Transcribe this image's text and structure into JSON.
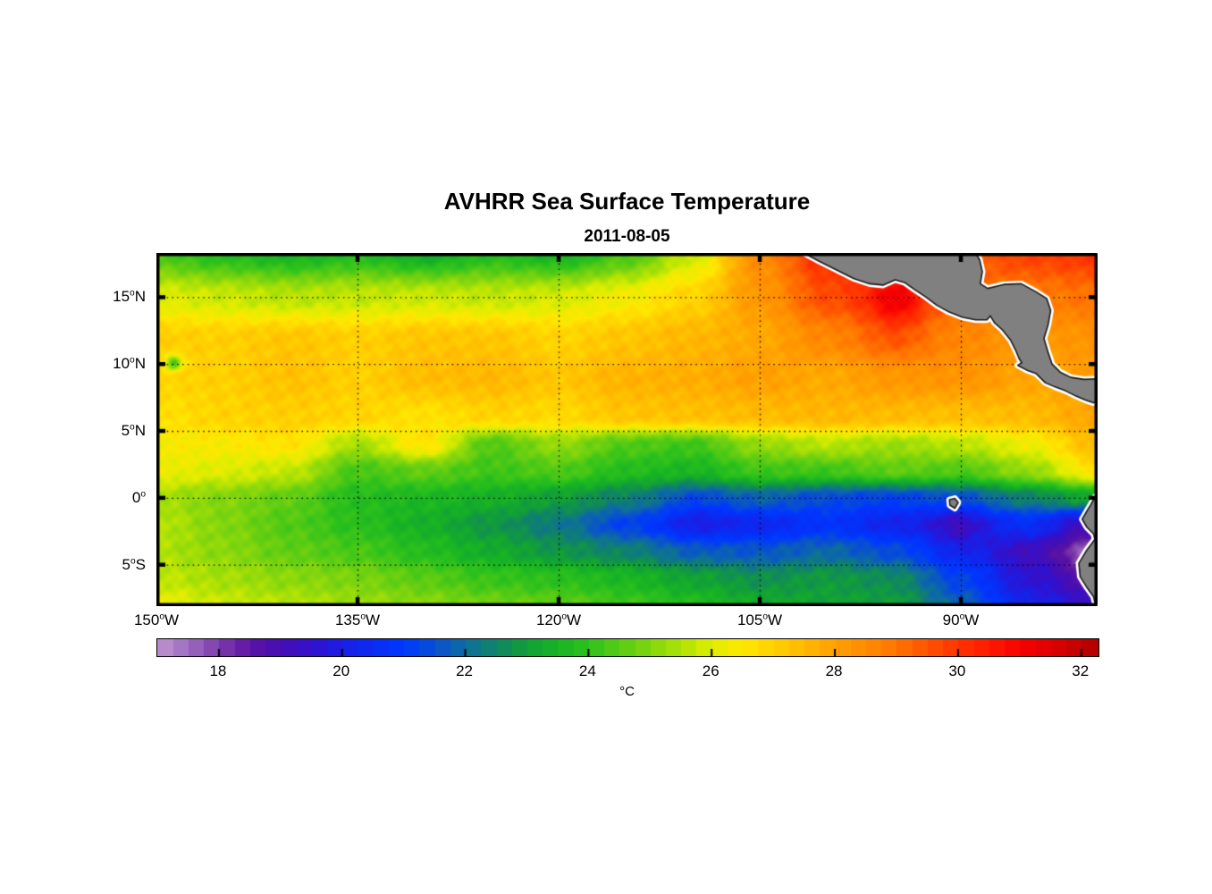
{
  "figure": {
    "title": "AVHRR Sea Surface Temperature",
    "subtitle": "2011-08-05",
    "background": "#FFFFFF"
  },
  "axes": {
    "x_ticks": [
      {
        "base": "150",
        "sup": "o",
        "suffix": "W",
        "lon": 150
      },
      {
        "base": "135",
        "sup": "o",
        "suffix": "W",
        "lon": 135
      },
      {
        "base": "120",
        "sup": "o",
        "suffix": "W",
        "lon": 120
      },
      {
        "base": "105",
        "sup": "o",
        "suffix": "W",
        "lon": 105
      },
      {
        "base": "90",
        "sup": "o",
        "suffix": "W",
        "lon": 90
      }
    ],
    "y_ticks": [
      {
        "base": "15",
        "sup": "o",
        "suffix": "N",
        "lat": 15
      },
      {
        "base": "10",
        "sup": "o",
        "suffix": "N",
        "lat": 10
      },
      {
        "base": "5",
        "sup": "o",
        "suffix": "N",
        "lat": 5
      },
      {
        "base": "0",
        "sup": "o",
        "suffix": "",
        "lat": 0
      },
      {
        "base": "5",
        "sup": "o",
        "suffix": "S",
        "lat": -5
      }
    ],
    "grid_lons": [
      135,
      120,
      105,
      90
    ],
    "grid_lats": [
      15,
      10,
      5,
      0,
      -5
    ]
  },
  "colorbar": {
    "min": 17,
    "max": 32.28,
    "quantize_step": 0.25,
    "ticks": [
      18,
      20,
      22,
      24,
      26,
      28,
      30,
      32
    ],
    "unit": "°C"
  },
  "chart_data": {
    "type": "heatmap",
    "title": "AVHRR Sea Surface Temperature",
    "date": "2011-08-05",
    "units": "°C",
    "lon_range_W": [
      150,
      79.8
    ],
    "lat_range_N": [
      18.3,
      -8.1
    ],
    "lons_W": [
      150,
      145,
      140,
      135,
      130,
      125,
      120,
      115,
      110,
      105,
      100,
      95,
      90,
      85,
      80
    ],
    "lats_N": [
      18.3,
      15,
      12,
      9,
      6,
      4,
      2,
      0,
      -2,
      -4,
      -6,
      -8.1
    ],
    "sst_C": [
      [
        24.3,
        23.8,
        23.5,
        23.8,
        23.3,
        23.8,
        23.5,
        24.3,
        25.8,
        28.5,
        30.2,
        30.0,
        29.2,
        29.8,
        30.0
      ],
      [
        26.0,
        25.8,
        25.6,
        25.7,
        25.8,
        25.7,
        25.9,
        26.3,
        26.9,
        28.2,
        29.6,
        30.3,
        29.2,
        28.8,
        29.0
      ],
      [
        27.0,
        27.0,
        27.2,
        27.0,
        27.2,
        27.2,
        26.9,
        27.2,
        27.5,
        27.8,
        28.6,
        29.4,
        28.6,
        28.2,
        28.3
      ],
      [
        26.9,
        27.0,
        27.3,
        27.0,
        27.4,
        27.5,
        27.2,
        27.6,
        27.7,
        28.0,
        27.8,
        28.2,
        28.3,
        27.9,
        28.1
      ],
      [
        26.6,
        26.9,
        27.0,
        26.9,
        26.6,
        26.9,
        26.8,
        27.2,
        27.3,
        27.4,
        27.5,
        27.4,
        27.3,
        27.4,
        27.9
      ],
      [
        26.4,
        26.4,
        26.6,
        25.4,
        26.6,
        24.4,
        25.2,
        24.4,
        24.2,
        25.2,
        25.6,
        25.3,
        25.6,
        26.2,
        27.4
      ],
      [
        26.2,
        26.0,
        25.7,
        24.3,
        24.6,
        24.2,
        24.4,
        23.8,
        23.6,
        24.2,
        24.2,
        24.6,
        24.4,
        25.2,
        26.6
      ],
      [
        25.4,
        25.0,
        24.6,
        23.8,
        23.6,
        23.4,
        23.0,
        22.4,
        21.6,
        21.8,
        21.4,
        21.2,
        21.6,
        22.4,
        23.2
      ],
      [
        25.6,
        25.0,
        24.4,
        23.9,
        23.4,
        22.8,
        22.2,
        21.2,
        20.4,
        20.3,
        20.8,
        20.2,
        19.8,
        20.6,
        19.0
      ],
      [
        25.5,
        25.1,
        24.6,
        24.3,
        23.8,
        23.3,
        22.8,
        22.4,
        21.8,
        21.6,
        21.9,
        21.4,
        20.4,
        19.2,
        18.0
      ],
      [
        25.7,
        25.4,
        25.1,
        24.9,
        24.5,
        24.1,
        23.9,
        23.6,
        23.1,
        22.7,
        22.9,
        22.6,
        21.2,
        19.6,
        19.0
      ],
      [
        26.2,
        25.8,
        25.6,
        25.3,
        25.1,
        24.8,
        24.6,
        24.2,
        23.8,
        23.3,
        23.1,
        23.0,
        21.8,
        20.2,
        19.4
      ]
    ],
    "colormap_stops": [
      [
        17.0,
        "#BD96D0"
      ],
      [
        17.5,
        "#9D6CBF"
      ],
      [
        18.0,
        "#7D3BAC"
      ],
      [
        18.5,
        "#5C14A2"
      ],
      [
        19.0,
        "#470EB4"
      ],
      [
        19.5,
        "#3311CC"
      ],
      [
        20.0,
        "#1B1FE6"
      ],
      [
        20.5,
        "#0A2CF4"
      ],
      [
        21.0,
        "#0038FF"
      ],
      [
        21.5,
        "#0950D2"
      ],
      [
        22.0,
        "#0E6E9E"
      ],
      [
        22.5,
        "#108663"
      ],
      [
        23.0,
        "#12A038"
      ],
      [
        23.5,
        "#18B424"
      ],
      [
        24.0,
        "#2EC21C"
      ],
      [
        24.5,
        "#58CC14"
      ],
      [
        25.0,
        "#82D60E"
      ],
      [
        25.5,
        "#AEE206"
      ],
      [
        26.0,
        "#E0EE00"
      ],
      [
        26.5,
        "#FFE800"
      ],
      [
        27.0,
        "#FFD000"
      ],
      [
        27.5,
        "#FFB800"
      ],
      [
        28.0,
        "#FFA000"
      ],
      [
        28.5,
        "#FF8C00"
      ],
      [
        29.0,
        "#FF7400"
      ],
      [
        29.5,
        "#FF5200"
      ],
      [
        30.0,
        "#FF3400"
      ],
      [
        30.5,
        "#FF1A00"
      ],
      [
        31.0,
        "#F70200"
      ],
      [
        31.5,
        "#DE0000"
      ],
      [
        32.0,
        "#C00000"
      ],
      [
        32.3,
        "#B00000"
      ]
    ],
    "spot_features": [
      {
        "lon": 148.7,
        "lat": 10.1,
        "dT": -2.8,
        "r": 0.4
      },
      {
        "lon": 94.8,
        "lat": 14.6,
        "dT": 0.9,
        "r": 1.3
      },
      {
        "lon": 80.4,
        "lat": -5.2,
        "dT": -1.0,
        "r": 1.1
      },
      {
        "lon": 109.5,
        "lat": -1.4,
        "dT": -0.4,
        "r": 1.6
      },
      {
        "lon": 90.3,
        "lat": -2.2,
        "dT": -0.6,
        "r": 1.3
      }
    ],
    "land_color": "#808080",
    "coast_outline_color": "#1A1A1A",
    "coast_nodata_color": "#FFFFFF",
    "land_polygons_lonW_latN": {
      "central_america": [
        [
          102.0,
          18.45
        ],
        [
          100.6,
          17.7
        ],
        [
          99.2,
          17.0
        ],
        [
          98.0,
          16.4
        ],
        [
          96.8,
          16.0
        ],
        [
          95.8,
          15.9
        ],
        [
          94.9,
          16.3
        ],
        [
          94.2,
          16.1
        ],
        [
          93.5,
          15.6
        ],
        [
          92.6,
          15.0
        ],
        [
          91.8,
          14.4
        ],
        [
          90.9,
          13.9
        ],
        [
          89.9,
          13.5
        ],
        [
          88.9,
          13.3
        ],
        [
          88.05,
          13.3
        ],
        [
          87.8,
          13.6
        ],
        [
          87.5,
          13.1
        ],
        [
          86.9,
          12.55
        ],
        [
          86.3,
          11.8
        ],
        [
          85.9,
          11.0
        ],
        [
          85.65,
          10.4
        ],
        [
          85.45,
          10.1
        ],
        [
          85.75,
          9.9
        ],
        [
          85.1,
          9.55
        ],
        [
          84.4,
          9.3
        ],
        [
          83.7,
          8.6
        ],
        [
          83.0,
          8.3
        ],
        [
          82.2,
          8.0
        ],
        [
          81.4,
          7.6
        ],
        [
          80.7,
          7.3
        ],
        [
          80.1,
          7.1
        ],
        [
          79.6,
          7.4
        ],
        [
          79.6,
          8.9
        ],
        [
          80.8,
          8.85
        ],
        [
          81.8,
          9.0
        ],
        [
          82.6,
          9.4
        ],
        [
          83.2,
          10.0
        ],
        [
          83.5,
          10.9
        ],
        [
          83.8,
          11.9
        ],
        [
          83.5,
          12.9
        ],
        [
          83.3,
          14.0
        ],
        [
          83.6,
          14.9
        ],
        [
          84.4,
          15.4
        ],
        [
          85.5,
          16.0
        ],
        [
          86.8,
          15.95
        ],
        [
          88.0,
          15.65
        ],
        [
          88.55,
          16.0
        ],
        [
          88.4,
          16.9
        ],
        [
          88.6,
          17.8
        ],
        [
          89.0,
          18.45
        ]
      ],
      "south_america": [
        [
          79.6,
          0.3
        ],
        [
          80.0,
          0.05
        ],
        [
          80.3,
          -0.5
        ],
        [
          80.6,
          -1.0
        ],
        [
          80.95,
          -1.6
        ],
        [
          80.6,
          -2.2
        ],
        [
          80.1,
          -2.7
        ],
        [
          80.0,
          -3.1
        ],
        [
          80.6,
          -3.9
        ],
        [
          81.2,
          -4.9
        ],
        [
          81.1,
          -5.9
        ],
        [
          80.6,
          -6.7
        ],
        [
          80.1,
          -7.4
        ],
        [
          79.9,
          -8.3
        ],
        [
          79.5,
          -8.3
        ]
      ],
      "galapagos": [
        [
          90.85,
          -0.15
        ],
        [
          90.45,
          -0.05
        ],
        [
          90.2,
          -0.35
        ],
        [
          90.45,
          -0.78
        ],
        [
          90.82,
          -0.55
        ]
      ]
    }
  }
}
